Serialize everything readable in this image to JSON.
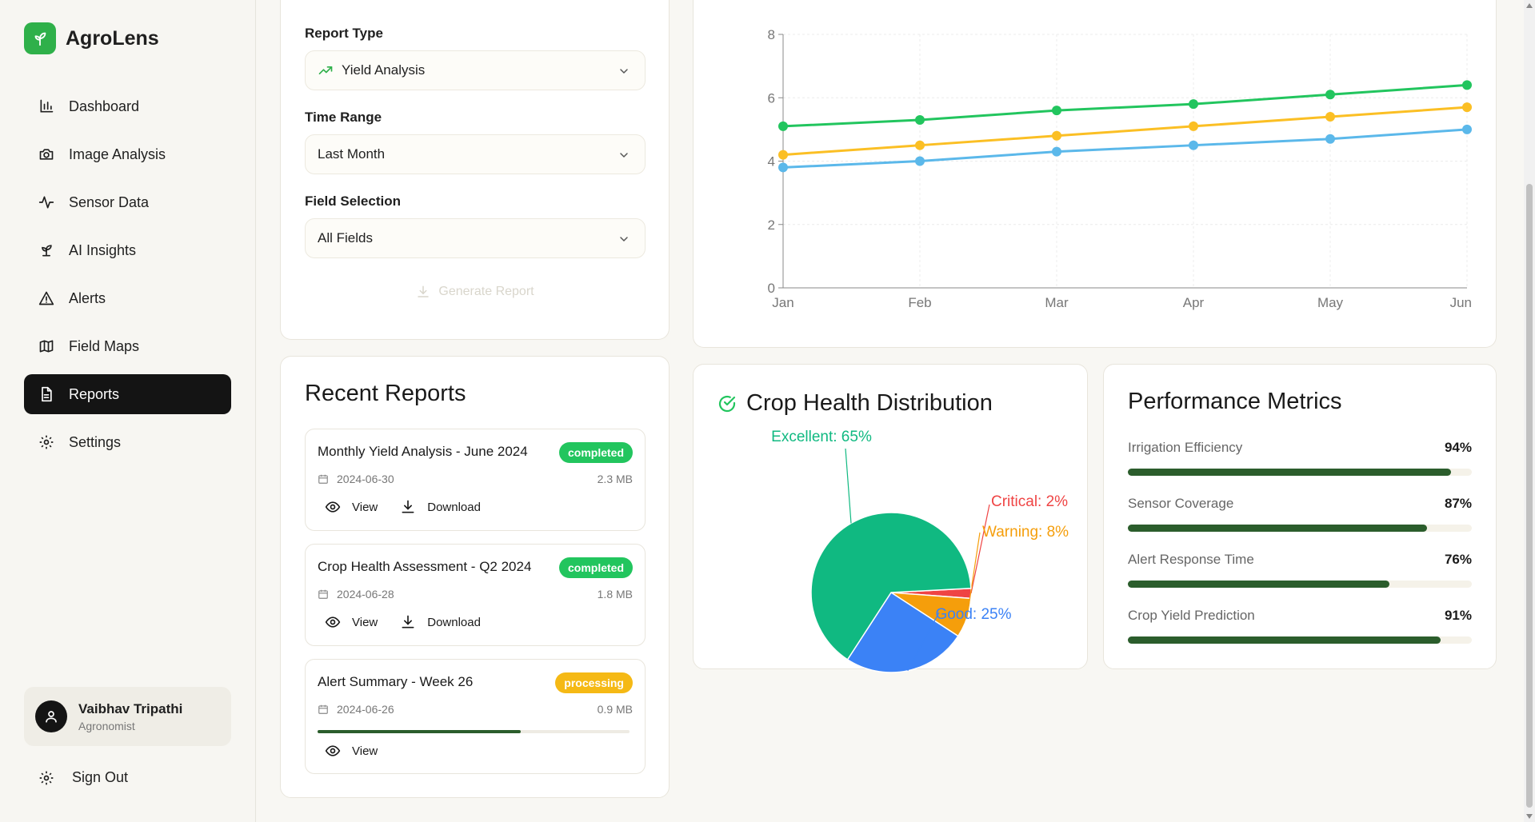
{
  "app": {
    "name": "AgroLens"
  },
  "nav": {
    "items": [
      {
        "label": "Dashboard",
        "icon": "bar-chart-icon",
        "active": false
      },
      {
        "label": "Image Analysis",
        "icon": "camera-icon",
        "active": false
      },
      {
        "label": "Sensor Data",
        "icon": "activity-icon",
        "active": false
      },
      {
        "label": "AI Insights",
        "icon": "sprout-icon",
        "active": false
      },
      {
        "label": "Alerts",
        "icon": "warning-icon",
        "active": false
      },
      {
        "label": "Field Maps",
        "icon": "map-icon",
        "active": false
      },
      {
        "label": "Reports",
        "icon": "file-icon",
        "active": true
      },
      {
        "label": "Settings",
        "icon": "gear-icon",
        "active": false
      }
    ]
  },
  "user": {
    "name": "Vaibhav Tripathi",
    "role": "Agronomist"
  },
  "signout": {
    "label": "Sign Out"
  },
  "generator": {
    "report_type_label": "Report Type",
    "report_type_value": "Yield Analysis",
    "time_range_label": "Time Range",
    "time_range_value": "Last Month",
    "field_selection_label": "Field Selection",
    "field_selection_value": "All Fields",
    "generate_button": "Generate Report"
  },
  "recent_reports": {
    "title": "Recent Reports",
    "items": [
      {
        "title": "Monthly Yield Analysis - June 2024",
        "status": "completed",
        "date": "2024-06-30",
        "size": "2.3 MB",
        "view": "View",
        "download": "Download"
      },
      {
        "title": "Crop Health Assessment - Q2 2024",
        "status": "completed",
        "date": "2024-06-28",
        "size": "1.8 MB",
        "view": "View",
        "download": "Download"
      },
      {
        "title": "Alert Summary - Week 26",
        "status": "processing",
        "date": "2024-06-26",
        "size": "0.9 MB",
        "view": "View",
        "progress": 0.65
      }
    ]
  },
  "chart_data": [
    {
      "type": "line",
      "categories": [
        "Jan",
        "Feb",
        "Mar",
        "Apr",
        "May",
        "Jun"
      ],
      "ylim": [
        0,
        8
      ],
      "yticks": [
        "0",
        "2",
        "4",
        "6",
        "8"
      ],
      "series": [
        {
          "name": "series-green",
          "color": "#22c55e",
          "values": [
            5.1,
            5.3,
            5.6,
            5.8,
            6.1,
            6.4
          ]
        },
        {
          "name": "series-yellow",
          "color": "#fbbf24",
          "values": [
            4.2,
            4.5,
            4.8,
            5.1,
            5.4,
            5.7
          ]
        },
        {
          "name": "series-blue",
          "color": "#5bb8ea",
          "values": [
            3.8,
            4.0,
            4.3,
            4.5,
            4.7,
            5.0
          ]
        }
      ]
    },
    {
      "type": "pie",
      "title": "Crop Health Distribution",
      "slices": [
        {
          "label": "Excellent: 65%",
          "value": 65,
          "color": "#10b981"
        },
        {
          "label": "Good: 25%",
          "value": 25,
          "color": "#3b82f6"
        },
        {
          "label": "Warning: 8%",
          "value": 8,
          "color": "#f59e0b"
        },
        {
          "label": "Critical: 2%",
          "value": 2,
          "color": "#ef4444"
        }
      ]
    }
  ],
  "performance": {
    "title": "Performance Metrics",
    "metrics": [
      {
        "label": "Irrigation Efficiency",
        "value": "94%",
        "fraction": 0.94
      },
      {
        "label": "Sensor Coverage",
        "value": "87%",
        "fraction": 0.87
      },
      {
        "label": "Alert Response Time",
        "value": "76%",
        "fraction": 0.76
      },
      {
        "label": "Crop Yield Prediction",
        "value": "91%",
        "fraction": 0.91
      }
    ]
  },
  "colors": {
    "brand": "#2fb04a",
    "active_nav": "#141414",
    "bar_fill": "#2b5d2c",
    "completed": "#22c55e",
    "processing": "#f5b915"
  }
}
